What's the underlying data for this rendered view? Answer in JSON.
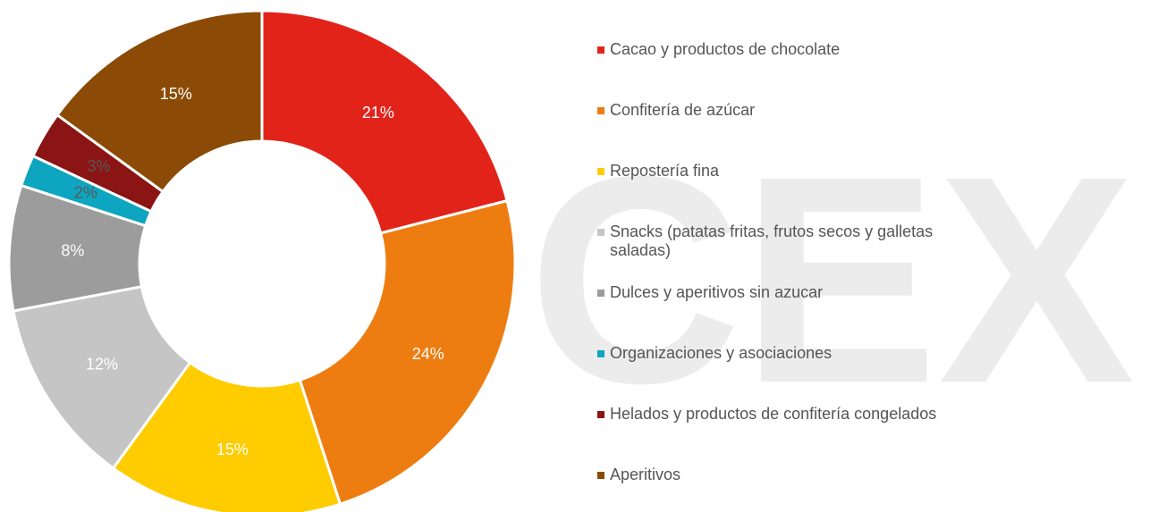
{
  "chart_data": {
    "type": "donut",
    "watermark": "CEX",
    "categories": [
      "Cacao y productos de chocolate",
      "Confitería de azúcar",
      "Repostería fina",
      "Snacks (patatas fritas, frutos secos y galletas saladas)",
      "Dulces y aperitivos sin azucar",
      "Organizaciones y asociaciones",
      "Helados y productos de confitería congelados",
      "Aperitivos"
    ],
    "values": [
      21,
      24,
      15,
      12,
      8,
      2,
      3,
      15
    ],
    "value_labels": [
      "21%",
      "24%",
      "15%",
      "12%",
      "8%",
      "2%",
      "3%",
      "15%"
    ],
    "colors": [
      "#e2231a",
      "#ee7d11",
      "#ffcc00",
      "#c6c5c6",
      "#9d9c9d",
      "#0ea5c0",
      "#8b1414",
      "#8b4b06"
    ],
    "label_colors": [
      "#ffffff",
      "#ffffff",
      "#ffffff",
      "#ffffff",
      "#ffffff",
      "#595959",
      "#595959",
      "#ffffff"
    ],
    "legend": "right"
  }
}
